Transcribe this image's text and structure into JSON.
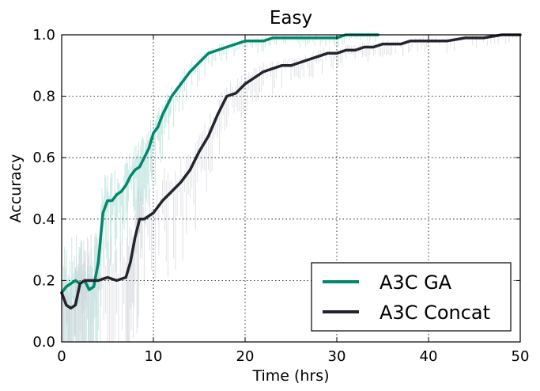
{
  "chart_data": {
    "type": "line",
    "title": "Easy",
    "xlabel": "Time (hrs)",
    "ylabel": "Accuracy",
    "xlim": [
      0,
      50
    ],
    "ylim": [
      0.0,
      1.0
    ],
    "xticks": [
      "0",
      "10",
      "20",
      "30",
      "40",
      "50"
    ],
    "yticks": [
      "0.0",
      "0.2",
      "0.4",
      "0.6",
      "0.8",
      "1.0"
    ],
    "grid": true,
    "legend_position": "lower-right",
    "series": [
      {
        "name": "A3C GA",
        "color": "#00876c",
        "x": [
          0,
          0.5,
          1,
          1.5,
          2,
          2.5,
          3,
          3.5,
          4,
          4.5,
          5,
          5.5,
          6,
          6.5,
          7,
          7.5,
          8,
          8.5,
          9,
          9.5,
          10,
          10.5,
          11,
          11.5,
          12,
          13,
          14,
          15,
          16,
          17,
          18,
          19,
          20,
          21,
          22,
          23,
          24,
          25,
          26,
          27,
          28,
          29,
          30,
          31,
          32,
          33,
          34.5
        ],
        "y": [
          0.16,
          0.18,
          0.19,
          0.2,
          0.19,
          0.2,
          0.17,
          0.18,
          0.26,
          0.42,
          0.46,
          0.46,
          0.48,
          0.49,
          0.51,
          0.54,
          0.56,
          0.57,
          0.6,
          0.63,
          0.68,
          0.7,
          0.74,
          0.77,
          0.8,
          0.84,
          0.88,
          0.91,
          0.94,
          0.95,
          0.96,
          0.97,
          0.98,
          0.98,
          0.98,
          0.99,
          0.99,
          0.99,
          0.99,
          0.99,
          0.99,
          0.99,
          0.99,
          1.0,
          1.0,
          1.0,
          1.0
        ]
      },
      {
        "name": "A3C Concat",
        "color": "#23252e",
        "x": [
          0,
          0.5,
          1,
          1.5,
          2,
          2.5,
          3,
          4,
          5,
          6,
          7,
          7.5,
          8,
          8.5,
          9,
          10,
          11,
          12,
          13,
          14,
          15,
          16,
          17,
          18,
          19,
          20,
          21,
          22,
          23,
          24,
          25,
          26,
          27,
          28,
          29,
          30,
          31,
          32,
          33,
          34,
          35,
          36,
          37,
          38,
          39,
          40,
          42,
          44,
          46,
          48,
          50
        ],
        "y": [
          0.16,
          0.12,
          0.11,
          0.12,
          0.19,
          0.2,
          0.2,
          0.2,
          0.21,
          0.2,
          0.21,
          0.26,
          0.34,
          0.4,
          0.4,
          0.42,
          0.46,
          0.49,
          0.52,
          0.56,
          0.62,
          0.67,
          0.74,
          0.8,
          0.81,
          0.84,
          0.86,
          0.88,
          0.89,
          0.9,
          0.9,
          0.91,
          0.92,
          0.93,
          0.94,
          0.94,
          0.95,
          0.95,
          0.96,
          0.96,
          0.97,
          0.97,
          0.97,
          0.98,
          0.98,
          0.98,
          0.98,
          0.99,
          0.99,
          1.0,
          1.0
        ]
      }
    ]
  }
}
